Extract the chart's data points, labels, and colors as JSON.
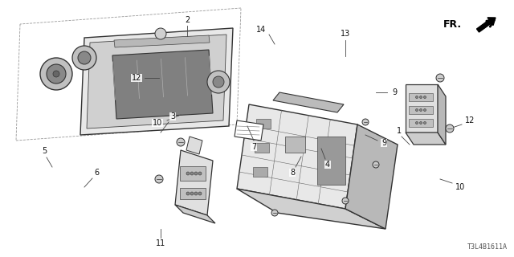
{
  "bg_color": "#ffffff",
  "diagram_code": "T3L4B1611A",
  "line_color": "#333333",
  "gray_fill": "#d8d8d8",
  "dark_fill": "#888888",
  "light_fill": "#f0f0f0"
}
